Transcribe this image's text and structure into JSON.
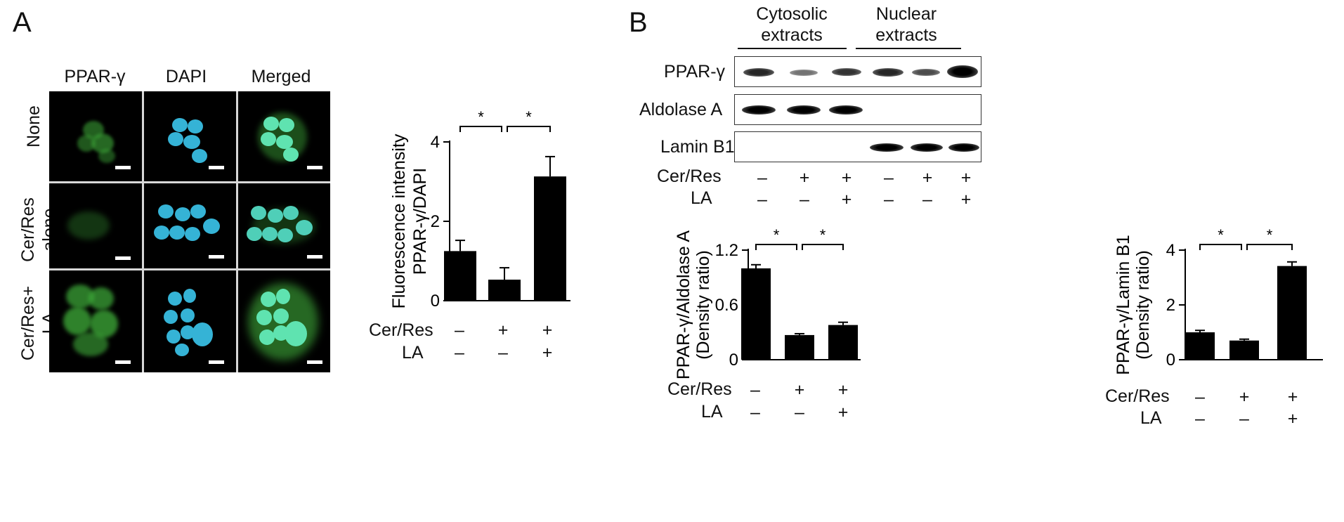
{
  "panel_a": {
    "letter": "A",
    "columns": [
      "PPAR-γ",
      "DAPI",
      "Merged"
    ],
    "rows": [
      {
        "line1": "None",
        "line2": ""
      },
      {
        "line1": "Cer/Res",
        "line2": "alone"
      },
      {
        "line1": "Cer/Res+",
        "line2": "LA"
      }
    ]
  },
  "panel_b": {
    "letter": "B",
    "fraction_labels": [
      {
        "line1": "Cytosolic",
        "line2": "extracts"
      },
      {
        "line1": "Nuclear",
        "line2": "extracts"
      }
    ],
    "blot_labels": [
      "PPAR-γ",
      "Aldolase A",
      "Lamin B1"
    ],
    "treatments": [
      {
        "name": "Cer/Res",
        "signs": [
          "–",
          "+",
          "+",
          "–",
          "+",
          "+"
        ]
      },
      {
        "name": "LA",
        "signs": [
          "–",
          "–",
          "+",
          "–",
          "–",
          "+"
        ]
      }
    ]
  },
  "colors": {
    "bar": "#000000",
    "green_stain": "#3fae3a",
    "dapi_stain": "#35b3d6",
    "merged_stain": "#5fe3b0"
  },
  "chart_data": [
    {
      "type": "bar",
      "id": "fluorescence",
      "ylabel_line1": "Fluorescence intensity",
      "ylabel_line2": "PPAR-γ/DAPI",
      "ylim": [
        0,
        4
      ],
      "yticks": [
        "0",
        "2",
        "4"
      ],
      "values": [
        1.25,
        0.53,
        3.13
      ],
      "errors": [
        0.27,
        0.3,
        0.5
      ],
      "significance": [
        "*",
        "*"
      ],
      "treatments": [
        {
          "name": "Cer/Res",
          "signs": [
            "–",
            "+",
            "+"
          ]
        },
        {
          "name": "LA",
          "signs": [
            "–",
            "–",
            "+"
          ]
        }
      ]
    },
    {
      "type": "bar",
      "id": "aldolase",
      "ylabel_line1": "PPAR-γ/Aldolase A",
      "ylabel_line2": "(Density ratio)",
      "ylim": [
        0,
        1.2
      ],
      "yticks": [
        "0",
        "0.6",
        "1.2"
      ],
      "values": [
        1.0,
        0.27,
        0.38
      ],
      "errors": [
        0.04,
        0.015,
        0.03
      ],
      "significance": [
        "*",
        "*"
      ],
      "treatments": [
        {
          "name": "Cer/Res",
          "signs": [
            "–",
            "+",
            "+"
          ]
        },
        {
          "name": "LA",
          "signs": [
            "–",
            "–",
            "+"
          ]
        }
      ]
    },
    {
      "type": "bar",
      "id": "laminb1",
      "ylabel_line1": "PPAR-γ/Lamin B1",
      "ylabel_line2": "(Density ratio)",
      "ylim": [
        0,
        4
      ],
      "yticks": [
        "0",
        "2",
        "4"
      ],
      "values": [
        1.0,
        0.7,
        3.42
      ],
      "errors": [
        0.07,
        0.05,
        0.15
      ],
      "significance": [
        "*",
        "*"
      ],
      "treatments": [
        {
          "name": "Cer/Res",
          "signs": [
            "–",
            "+",
            "+"
          ]
        },
        {
          "name": "LA",
          "signs": [
            "–",
            "–",
            "+"
          ]
        }
      ]
    }
  ]
}
